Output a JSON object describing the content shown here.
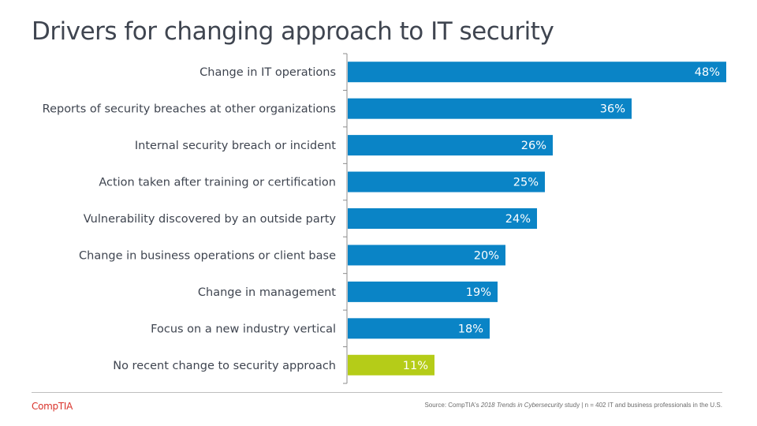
{
  "title": "Drivers for changing approach to IT security",
  "brand": {
    "logo_text": "CompTIA",
    "logo_color": "#d9332b"
  },
  "source": {
    "prefix": "Source: CompTIA's",
    "study": "2018 Trends in Cybersecurity",
    "suffix": " study  |  n = 402 IT and business professionals  in the U.S."
  },
  "colors": {
    "primary": "#0a84c6",
    "highlight": "#b5cc18",
    "axis": "#8c8c8c"
  },
  "chart_data": {
    "type": "bar",
    "orientation": "horizontal",
    "categories": [
      "Change in IT operations",
      "Reports of security breaches at other organizations",
      "Internal security breach or incident",
      "Action taken after training or certification",
      "Vulnerability discovered by an outside party",
      "Change in business operations or client base",
      "Change in management",
      "Focus on a new industry vertical",
      "No recent change to security approach"
    ],
    "values": [
      48,
      36,
      26,
      25,
      24,
      20,
      19,
      18,
      11
    ],
    "value_labels": [
      "48%",
      "36%",
      "26%",
      "25%",
      "24%",
      "20%",
      "19%",
      "18%",
      "11%"
    ],
    "highlight_index": 8,
    "xlim": [
      0,
      50
    ],
    "unit": "%",
    "grid": false,
    "legend": "none"
  }
}
